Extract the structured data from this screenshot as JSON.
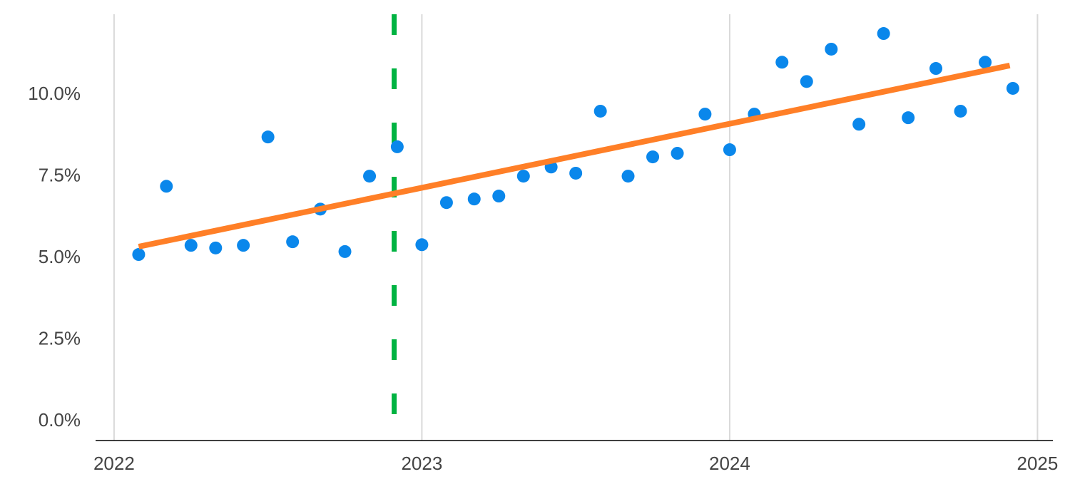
{
  "chart_data": {
    "type": "scatter",
    "x": [
      2022.08,
      2022.17,
      2022.25,
      2022.33,
      2022.42,
      2022.5,
      2022.58,
      2022.67,
      2022.75,
      2022.83,
      2022.92,
      2023.0,
      2023.08,
      2023.17,
      2023.25,
      2023.33,
      2023.42,
      2023.5,
      2023.58,
      2023.67,
      2023.75,
      2023.83,
      2023.92,
      2024.0,
      2024.08,
      2024.17,
      2024.25,
      2024.33,
      2024.42,
      2024.5,
      2024.58,
      2024.67,
      2024.75,
      2024.83,
      2024.92
    ],
    "values": [
      5.11,
      7.2,
      5.39,
      5.31,
      5.39,
      8.71,
      5.5,
      6.5,
      5.2,
      7.51,
      8.41,
      5.41,
      6.7,
      6.81,
      6.9,
      7.51,
      7.79,
      7.6,
      9.5,
      7.51,
      8.1,
      8.21,
      9.41,
      8.32,
      9.41,
      11.0,
      10.41,
      11.4,
      9.1,
      11.88,
      9.3,
      10.81,
      9.5,
      11.0,
      10.2
    ],
    "color": "#0a87eb",
    "trend": {
      "x": [
        2022.08,
        2024.91
      ],
      "values": [
        5.35,
        10.9
      ],
      "color": "#ff7f27"
    },
    "vline": {
      "x": 2022.91,
      "color": "#00b341"
    },
    "xlim": [
      2021.94,
      2025.05
    ],
    "xticks": [
      2022,
      2023,
      2024,
      2025
    ],
    "ylim": [
      -0.59,
      12.47
    ],
    "yticks": [
      {
        "value": 0,
        "label": "0.0%"
      },
      {
        "value": 2.5,
        "label": "2.5%"
      },
      {
        "value": 5,
        "label": "5.0%"
      },
      {
        "value": 7.5,
        "label": "7.5%"
      },
      {
        "value": 10,
        "label": "10.0%"
      }
    ],
    "grid": "x"
  }
}
